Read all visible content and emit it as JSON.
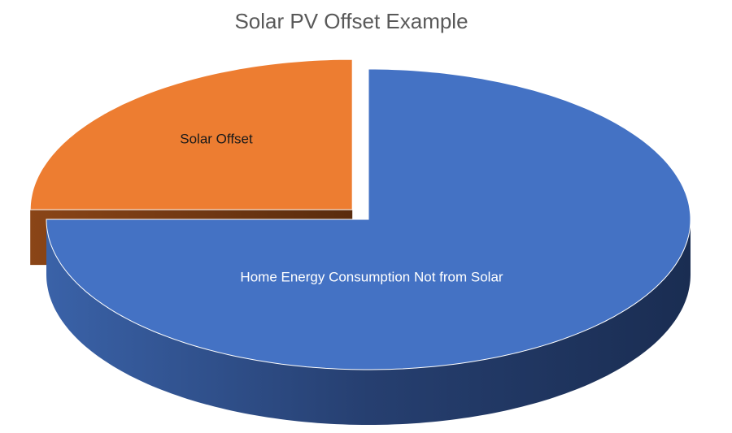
{
  "chart_data": {
    "type": "pie3d",
    "title": "Solar PV Offset Example",
    "categories": [
      "Home Energy Consumption Not from Solar",
      "Solar Offset"
    ],
    "values": [
      75,
      25
    ],
    "colors": [
      "#4472c4",
      "#ed7d31"
    ],
    "label_colors": [
      "#ffffff",
      "#1a1a1a"
    ],
    "exploded": [
      false,
      true
    ]
  }
}
